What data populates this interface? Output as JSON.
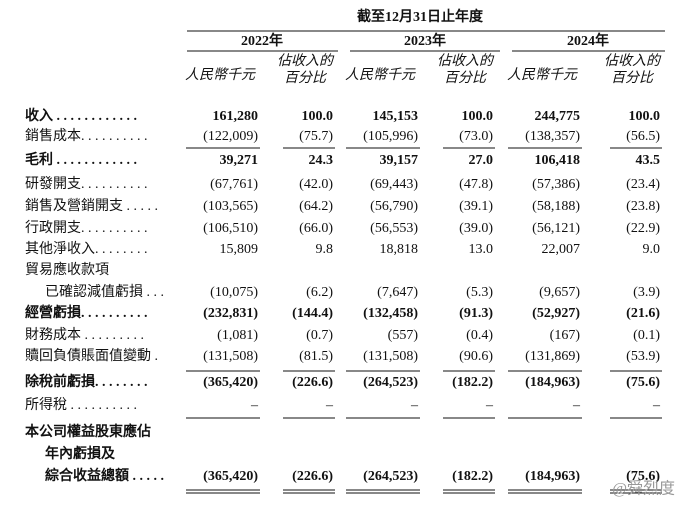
{
  "header": {
    "period": "截至12月31日止年度",
    "years": [
      "2022年",
      "2023年",
      "2024年"
    ],
    "amount_unit": "人民幣千元",
    "percent_unit": [
      "佔收入的",
      "百分比"
    ]
  },
  "table": {
    "rows": [
      {
        "label": "收入 . . . . . . . . . . . .",
        "values": [
          "161,280",
          "100.0",
          "145,153",
          "100.0",
          "244,775",
          "100.0"
        ],
        "bold": true
      },
      {
        "label": "銷售成本. . . . . . . . . .",
        "values": [
          "(122,009)",
          "(75.7)",
          "(105,996)",
          "(73.0)",
          "(138,357)",
          "(56.5)"
        ]
      },
      {
        "label": "毛利 . . . . . . . . . . . .",
        "values": [
          "39,271",
          "24.3",
          "39,157",
          "27.0",
          "106,418",
          "43.5"
        ],
        "bold": true
      },
      {
        "label": "研發開支. . . . . . . . . .",
        "values": [
          "(67,761)",
          "(42.0)",
          "(69,443)",
          "(47.8)",
          "(57,386)",
          "(23.4)"
        ]
      },
      {
        "label": "銷售及營銷開支 . . . . .",
        "values": [
          "(103,565)",
          "(64.2)",
          "(56,790)",
          "(39.1)",
          "(58,188)",
          "(23.8)"
        ]
      },
      {
        "label": "行政開支. . . . . . . . . .",
        "values": [
          "(106,510)",
          "(66.0)",
          "(56,553)",
          "(39.0)",
          "(56,121)",
          "(22.9)"
        ]
      },
      {
        "label": "其他淨收入. . . . . . . .",
        "values": [
          "15,809",
          "9.8",
          "18,818",
          "13.0",
          "22,007",
          "9.0"
        ]
      },
      {
        "label": "貿易應收款項"
      },
      {
        "label": "已確認減值虧損 . . .",
        "values": [
          "(10,075)",
          "(6.2)",
          "(7,647)",
          "(5.3)",
          "(9,657)",
          "(3.9)"
        ],
        "indent": true
      },
      {
        "label": "經營虧損. . . . . . . . . .",
        "values": [
          "(232,831)",
          "(144.4)",
          "(132,458)",
          "(91.3)",
          "(52,927)",
          "(21.6)"
        ],
        "bold": true
      },
      {
        "label": "財務成本 . . . . . . . . .",
        "values": [
          "(1,081)",
          "(0.7)",
          "(557)",
          "(0.4)",
          "(167)",
          "(0.1)"
        ]
      },
      {
        "label": "贖回負債賬面值變動 .",
        "values": [
          "(131,508)",
          "(81.5)",
          "(131,508)",
          "(90.6)",
          "(131,869)",
          "(53.9)"
        ]
      },
      {
        "label": "除稅前虧損. . . . . . . .",
        "values": [
          "(365,420)",
          "(226.6)",
          "(264,523)",
          "(182.2)",
          "(184,963)",
          "(75.6)"
        ],
        "bold": true
      },
      {
        "label": "所得稅 . . . . . . . . . .",
        "values": [
          "–",
          "–",
          "–",
          "–",
          "–",
          "–"
        ]
      },
      {
        "label": "本公司權益股東應佔",
        "bold": true
      },
      {
        "label": "年內虧損及",
        "bold": true,
        "indent": true
      },
      {
        "label": "綜合收益總額 . . . . .",
        "values": [
          "(365,420)",
          "(226.6)",
          "(264,523)",
          "(182.2)",
          "(184,963)",
          "(75.6)"
        ],
        "bold": true,
        "indent": true
      }
    ]
  },
  "watermark": "@舜烈度"
}
